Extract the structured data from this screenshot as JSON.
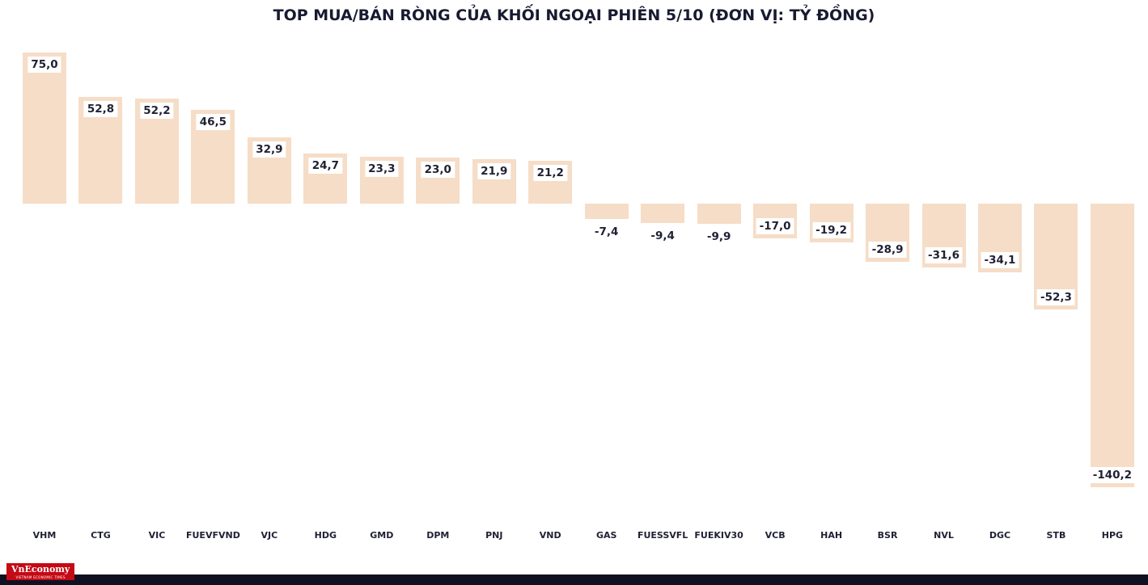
{
  "chart_data": {
    "type": "bar",
    "title": "TOP MUA/BÁN RÒNG CỦA KHỐI NGOẠI PHIÊN 5/10 (ĐƠN VỊ: TỶ ĐỒNG)",
    "categories": [
      "VHM",
      "CTG",
      "VIC",
      "FUEVFVND",
      "VJC",
      "HDG",
      "GMD",
      "DPM",
      "PNJ",
      "VND",
      "GAS",
      "FUESSVFL",
      "FUEKIV30",
      "VCB",
      "HAH",
      "BSR",
      "NVL",
      "DGC",
      "STB",
      "HPG"
    ],
    "values": [
      75.0,
      52.8,
      52.2,
      46.5,
      32.9,
      24.7,
      23.3,
      23.0,
      21.9,
      21.2,
      -7.4,
      -9.4,
      -9.9,
      -17.0,
      -19.2,
      -28.9,
      -31.6,
      -34.1,
      -52.3,
      -140.2
    ],
    "value_labels": [
      "75,0",
      "52,8",
      "52,2",
      "46,5",
      "32,9",
      "24,7",
      "23,3",
      "23,0",
      "21,9",
      "21,2",
      "-7,4",
      "-9,4",
      "-9,9",
      "-17,0",
      "-19,2",
      "-28,9",
      "-31,6",
      "-34,1",
      "-52,3",
      "-140,2"
    ],
    "xlabel": "",
    "ylabel": "",
    "ylim": [
      -150,
      80
    ],
    "grid": false,
    "legend": false,
    "bar_color": "#f6ddc7",
    "label_color": "#1f2133"
  },
  "branding": {
    "logo_text": "VnEconomy",
    "logo_tagline": "VIETNAM ECONOMIC TIMES",
    "logo_bg": "#c40a15",
    "footer_bar_color": "#0f1020"
  }
}
